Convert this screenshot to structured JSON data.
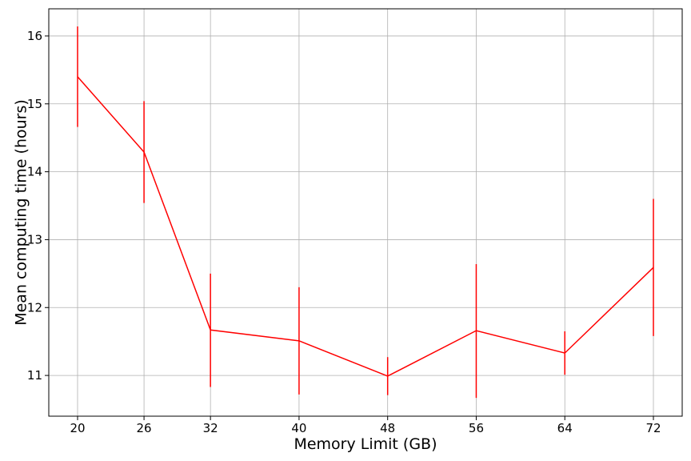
{
  "chart_data": {
    "type": "line",
    "title": "",
    "xlabel": "Memory Limit (GB)",
    "ylabel": "Mean computing time (hours)",
    "xlim": [
      17.4,
      74.6
    ],
    "ylim": [
      10.4,
      16.4
    ],
    "xticks": [
      20,
      26,
      32,
      40,
      48,
      56,
      64,
      72
    ],
    "yticks": [
      11,
      12,
      13,
      14,
      15,
      16
    ],
    "grid": true,
    "line_color": "#ff0000",
    "series": [
      {
        "x": [
          20,
          26,
          32,
          40,
          48,
          56,
          64,
          72
        ],
        "y": [
          15.4,
          14.29,
          11.67,
          11.51,
          10.99,
          11.66,
          11.33,
          12.59
        ],
        "err_low": [
          14.66,
          13.54,
          10.83,
          10.72,
          10.71,
          10.67,
          11.01,
          11.58
        ],
        "err_high": [
          16.14,
          15.04,
          12.5,
          12.3,
          11.27,
          12.64,
          11.65,
          13.6
        ]
      }
    ]
  }
}
